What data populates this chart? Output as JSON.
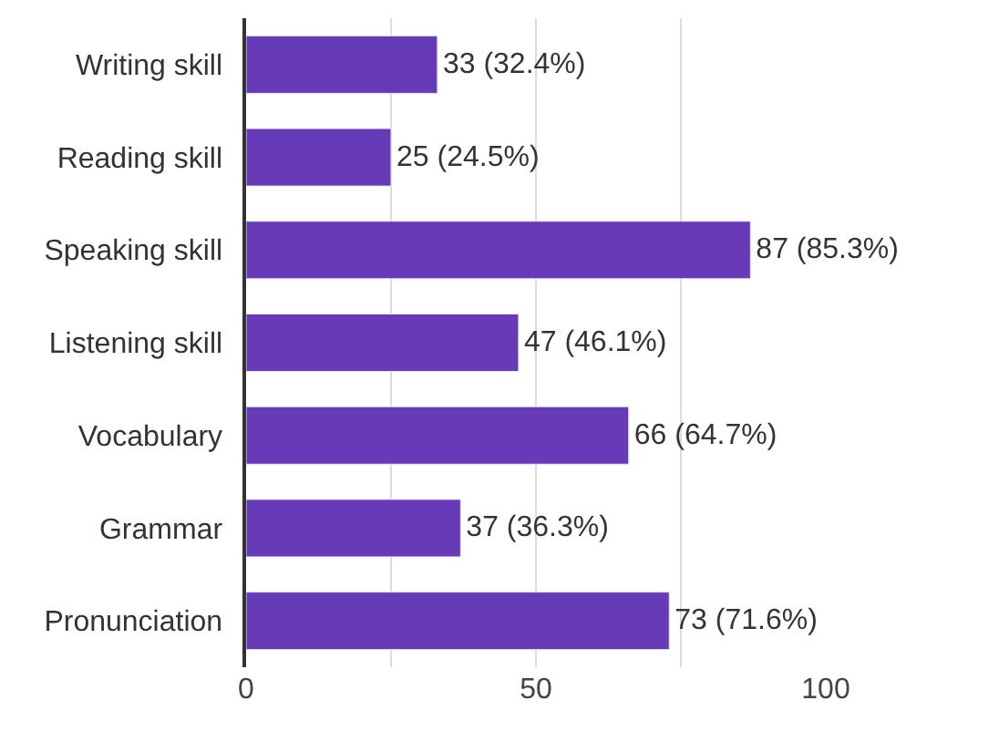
{
  "chart_data": {
    "type": "bar",
    "orientation": "horizontal",
    "categories": [
      "Writing skill",
      "Reading skill",
      "Speaking skill",
      "Listening skill",
      "Vocabulary",
      "Grammar",
      "Pronunciation"
    ],
    "values": [
      33,
      25,
      87,
      47,
      66,
      37,
      73
    ],
    "value_labels": [
      "33 (32.4%)",
      "25 (24.5%)",
      "87 (85.3%)",
      "47 (46.1%)",
      "66 (64.7%)",
      "37 (36.3%)",
      "73 (71.6%)"
    ],
    "color": "#673ab7",
    "xlim": [
      0,
      100
    ],
    "xticks": [
      0,
      {
        "value": 25,
        "label": null
      },
      50,
      {
        "value": 75,
        "label": null
      },
      100
    ],
    "grid": "x",
    "legend": false
  }
}
